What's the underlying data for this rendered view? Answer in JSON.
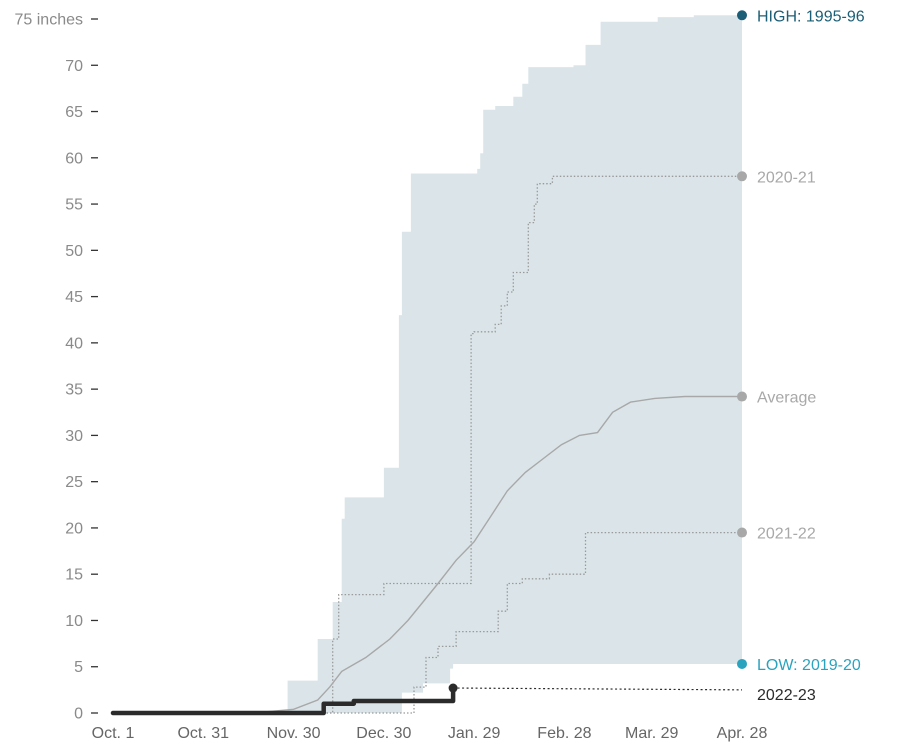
{
  "chart_data": {
    "type": "area",
    "title": "",
    "xlabel": "",
    "ylabel": "",
    "ylim": [
      0,
      75
    ],
    "y_ticks": [
      0,
      5,
      10,
      15,
      20,
      25,
      30,
      35,
      40,
      45,
      50,
      55,
      60,
      65,
      70,
      75
    ],
    "y_tick_labels": [
      "0",
      "5",
      "10",
      "15",
      "20",
      "25",
      "30",
      "35",
      "40",
      "45",
      "50",
      "55",
      "60",
      "65",
      "70",
      "75 inches"
    ],
    "x_range_days": [
      0,
      209
    ],
    "x_ticks": [
      {
        "day": 0,
        "label": "Oct. 1"
      },
      {
        "day": 30,
        "label": "Oct. 31"
      },
      {
        "day": 60,
        "label": "Nov. 30"
      },
      {
        "day": 90,
        "label": "Dec. 30"
      },
      {
        "day": 120,
        "label": "Jan. 29"
      },
      {
        "day": 150,
        "label": "Feb. 28"
      },
      {
        "day": 179,
        "label": "Mar. 29"
      },
      {
        "day": 209,
        "label": "Apr. 28"
      }
    ],
    "grid": false,
    "colors": {
      "band": "#dbe5e9",
      "high": "#1b5e75",
      "low": "#2aa3bf",
      "gray": "#a8a8a8",
      "current": "#2b2b2b"
    },
    "series": [
      {
        "name": "HIGH: 1995-96",
        "role": "high",
        "points": [
          [
            0,
            0
          ],
          [
            58,
            0
          ],
          [
            58,
            3.5
          ],
          [
            68,
            3.5
          ],
          [
            68,
            8
          ],
          [
            73,
            8
          ],
          [
            73,
            12
          ],
          [
            76,
            12
          ],
          [
            76,
            21
          ],
          [
            77,
            21
          ],
          [
            77,
            23.3
          ],
          [
            90,
            23.3
          ],
          [
            90,
            26.5
          ],
          [
            95,
            26.5
          ],
          [
            95,
            43
          ],
          [
            96,
            43
          ],
          [
            96,
            52
          ],
          [
            99,
            52
          ],
          [
            99,
            58.3
          ],
          [
            121,
            58.3
          ],
          [
            121,
            58.8
          ],
          [
            122,
            58.8
          ],
          [
            122,
            60.5
          ],
          [
            123,
            60.5
          ],
          [
            123,
            65.2
          ],
          [
            127,
            65.2
          ],
          [
            127,
            65.6
          ],
          [
            133,
            65.6
          ],
          [
            133,
            66.6
          ],
          [
            136,
            66.6
          ],
          [
            136,
            68
          ],
          [
            138,
            68
          ],
          [
            138,
            69.8
          ],
          [
            153,
            69.8
          ],
          [
            153,
            70
          ],
          [
            157,
            70
          ],
          [
            157,
            72.2
          ],
          [
            162,
            72.2
          ],
          [
            162,
            74.7
          ],
          [
            181,
            74.7
          ],
          [
            181,
            75.2
          ],
          [
            193,
            75.2
          ],
          [
            193,
            75.4
          ],
          [
            209,
            75.4
          ]
        ]
      },
      {
        "name": "LOW: 2019-20",
        "role": "low",
        "points": [
          [
            0,
            0
          ],
          [
            96,
            0
          ],
          [
            96,
            2.2
          ],
          [
            103,
            2.2
          ],
          [
            103,
            3.2
          ],
          [
            112,
            3.2
          ],
          [
            112,
            4.8
          ],
          [
            113,
            4.8
          ],
          [
            113,
            5.3
          ],
          [
            209,
            5.3
          ]
        ]
      },
      {
        "name": "2020-21",
        "role": "year",
        "points": [
          [
            0,
            0
          ],
          [
            73,
            0
          ],
          [
            73,
            8
          ],
          [
            75,
            8
          ],
          [
            75,
            12.8
          ],
          [
            90,
            12.8
          ],
          [
            90,
            14
          ],
          [
            119,
            14
          ],
          [
            119,
            41
          ],
          [
            120,
            41
          ],
          [
            120,
            41.2
          ],
          [
            127,
            41.2
          ],
          [
            127,
            42
          ],
          [
            129,
            42
          ],
          [
            129,
            44
          ],
          [
            131,
            44
          ],
          [
            131,
            45.5
          ],
          [
            133,
            45.5
          ],
          [
            133,
            47.6
          ],
          [
            138,
            47.6
          ],
          [
            138,
            53
          ],
          [
            140,
            53
          ],
          [
            140,
            55
          ],
          [
            141,
            55
          ],
          [
            141,
            57.2
          ],
          [
            146,
            57.2
          ],
          [
            146,
            58
          ],
          [
            209,
            58
          ]
        ]
      },
      {
        "name": "Average",
        "role": "avg",
        "points": [
          [
            0,
            0
          ],
          [
            50,
            0.1
          ],
          [
            60,
            0.4
          ],
          [
            68,
            1.4
          ],
          [
            72,
            2.8
          ],
          [
            76,
            4.5
          ],
          [
            84,
            6
          ],
          [
            92,
            8
          ],
          [
            98,
            10
          ],
          [
            103,
            12
          ],
          [
            108,
            14
          ],
          [
            114,
            16.5
          ],
          [
            120,
            18.5
          ],
          [
            126,
            21.5
          ],
          [
            131,
            24
          ],
          [
            137,
            26
          ],
          [
            143,
            27.5
          ],
          [
            149,
            29
          ],
          [
            155,
            30
          ],
          [
            161,
            30.3
          ],
          [
            166,
            32.5
          ],
          [
            172,
            33.6
          ],
          [
            180,
            34
          ],
          [
            190,
            34.2
          ],
          [
            209,
            34.2
          ]
        ]
      },
      {
        "name": "2021-22",
        "role": "year",
        "points": [
          [
            0,
            0
          ],
          [
            100,
            0
          ],
          [
            100,
            2.8
          ],
          [
            104,
            2.8
          ],
          [
            104,
            6
          ],
          [
            108,
            6
          ],
          [
            108,
            7.2
          ],
          [
            114,
            7.2
          ],
          [
            114,
            8.8
          ],
          [
            128,
            8.8
          ],
          [
            128,
            11
          ],
          [
            131,
            11
          ],
          [
            131,
            14
          ],
          [
            136,
            14
          ],
          [
            136,
            14.5
          ],
          [
            145,
            14.5
          ],
          [
            145,
            15
          ],
          [
            157,
            15
          ],
          [
            157,
            19.5
          ],
          [
            209,
            19.5
          ]
        ]
      },
      {
        "name": "2022-23",
        "role": "current",
        "points": [
          [
            0,
            0
          ],
          [
            70,
            0
          ],
          [
            70,
            1
          ],
          [
            80,
            1
          ],
          [
            80,
            1.3
          ],
          [
            113,
            1.3
          ],
          [
            113,
            2.7
          ]
        ],
        "projection_end": [
          209,
          2.5
        ]
      }
    ],
    "end_labels": [
      {
        "text": "HIGH: 1995-96",
        "role": "high",
        "value": 75.4
      },
      {
        "text": "2020-21",
        "role": "year",
        "value": 58
      },
      {
        "text": "Average",
        "role": "avg",
        "value": 34.2
      },
      {
        "text": "2021-22",
        "role": "year",
        "value": 19.5
      },
      {
        "text": "LOW: 2019-20",
        "role": "low",
        "value": 5.3
      },
      {
        "text": "2022-23",
        "role": "current",
        "value": 2.5
      }
    ]
  }
}
